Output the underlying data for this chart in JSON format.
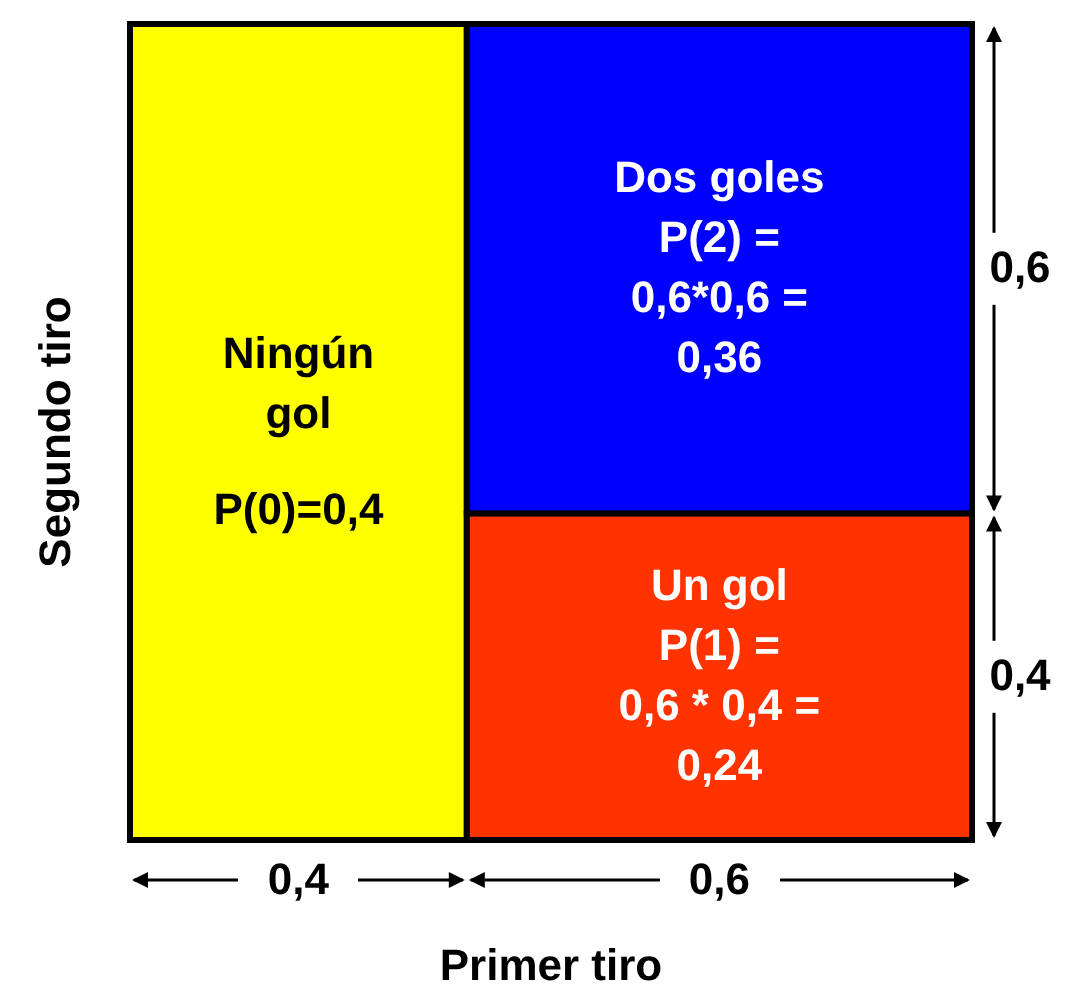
{
  "chart_data": {
    "type": "other",
    "xlabel": "Primer tiro",
    "ylabel": "Segundo tiro",
    "categories": [
      "Ningún gol",
      "Dos goles",
      "Un gol"
    ],
    "values": [
      0.4,
      0.36,
      0.24
    ],
    "colors": [
      "#ffff00",
      "#0000ff",
      "#ff3300"
    ],
    "value_labels": [
      "P(0)=0,4",
      "P(2) =\n0,6*0,6 =\n0,36",
      "P(1) =\n0,6 * 0,4 =\n0,24"
    ],
    "annotations": [
      "0,4",
      "0,6",
      "0,6",
      "0,4"
    ]
  }
}
